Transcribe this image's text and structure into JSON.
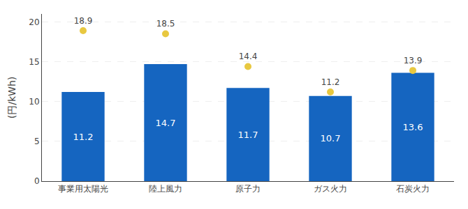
{
  "chart_data": {
    "type": "bar",
    "categories": [
      "事業用太陽光",
      "陸上風力",
      "原子力",
      "ガス火力",
      "石炭火力"
    ],
    "series": [
      {
        "type": "bar",
        "color": "#1565C0",
        "values": [
          11.2,
          14.7,
          11.7,
          10.7,
          13.6
        ]
      },
      {
        "type": "scatter",
        "color": "#E8C840",
        "marker": "circle",
        "values": [
          18.9,
          18.5,
          14.4,
          11.2,
          13.9
        ]
      }
    ],
    "ylabel": "(円/kWh)",
    "ylim": [
      0,
      21
    ],
    "yticks": [
      0,
      5,
      10,
      15,
      20
    ],
    "grid": true,
    "data_labels": true
  }
}
